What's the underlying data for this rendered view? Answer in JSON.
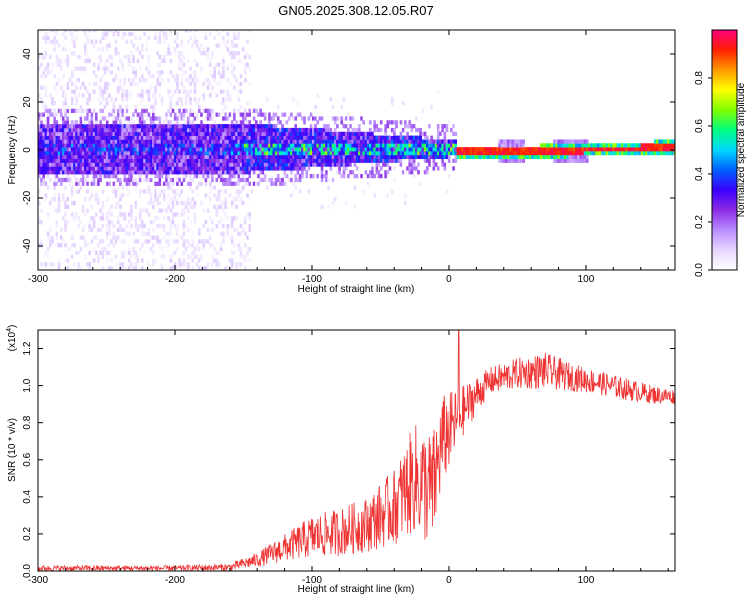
{
  "title": "GN05.2025.308.12.05.R07",
  "chart_data": [
    {
      "type": "heatmap",
      "name": "spectrogram",
      "xlabel": "Height of straight line (km)",
      "ylabel": "Frequency (Hz)",
      "xlim": [
        -300,
        165
      ],
      "ylim": [
        -50,
        50
      ],
      "xticks": [
        -300,
        -200,
        -100,
        0,
        100
      ],
      "xtick_labels": [
        "-300",
        "-200",
        "-100",
        "0",
        "100"
      ],
      "yticks": [
        -40,
        -20,
        0,
        20,
        40
      ],
      "ytick_labels": [
        "-40",
        "-20",
        "0",
        "20",
        "40"
      ],
      "colorbar": {
        "label": "Normalized spectral amplitude",
        "range": [
          0,
          1
        ],
        "ticks": [
          0.0,
          0.2,
          0.4,
          0.6,
          0.8
        ],
        "tick_labels": [
          "0.0",
          "0.2",
          "0.4",
          "0.6",
          "0.8"
        ],
        "colors": [
          "#ffffff",
          "#e6d6ff",
          "#b98cff",
          "#8a2be2",
          "#3a00ff",
          "#0060ff",
          "#00d8ff",
          "#00ff80",
          "#80ff00",
          "#ffff00",
          "#ff9900",
          "#ff2000",
          "#ff0080"
        ]
      },
      "features": {
        "noise_region_x": [
          -300,
          -145
        ],
        "signal_center_hz": 0,
        "noisy_band_halfwidth_hz": 10,
        "steady_line_start_x": 5,
        "steady_line_hz": -1.5,
        "steady_line_end_hz": 0.5
      }
    },
    {
      "type": "line",
      "name": "snr",
      "xlabel": "Height of straight line (km)",
      "ylabel": "SNR (10 * v/v)",
      "scale_label": "(x10",
      "scale_exponent": "4",
      "xlim": [
        -300,
        165
      ],
      "ylim": [
        0,
        1.3
      ],
      "xticks": [
        -300,
        -200,
        -100,
        0,
        100
      ],
      "xtick_labels": [
        "-300",
        "-200",
        "-100",
        "0",
        "100"
      ],
      "yticks": [
        0.0,
        0.2,
        0.4,
        0.6,
        0.8,
        1.0,
        1.2
      ],
      "ytick_labels": [
        "0.0",
        "0.2",
        "0.4",
        "0.6",
        "0.8",
        "1.0",
        "1.2"
      ],
      "line_color": "#ee3333",
      "envelope": {
        "x": [
          -300,
          -200,
          -160,
          -140,
          -120,
          -100,
          -80,
          -60,
          -40,
          -25,
          -12,
          -5,
          10,
          20,
          30,
          50,
          70,
          90,
          110,
          130,
          150,
          165
        ],
        "lo": [
          0.0,
          0.0,
          0.0,
          0.02,
          0.05,
          0.07,
          0.08,
          0.1,
          0.14,
          0.2,
          0.1,
          0.45,
          0.72,
          0.85,
          0.95,
          0.98,
          0.98,
          0.97,
          0.95,
          0.92,
          0.9,
          0.9
        ],
        "hi": [
          0.03,
          0.03,
          0.04,
          0.1,
          0.2,
          0.3,
          0.34,
          0.4,
          0.55,
          0.8,
          0.75,
          0.95,
          1.0,
          1.05,
          1.1,
          1.15,
          1.18,
          1.12,
          1.08,
          1.04,
          1.0,
          0.98
        ]
      },
      "spike": {
        "x": 7,
        "y": 1.3
      }
    }
  ]
}
